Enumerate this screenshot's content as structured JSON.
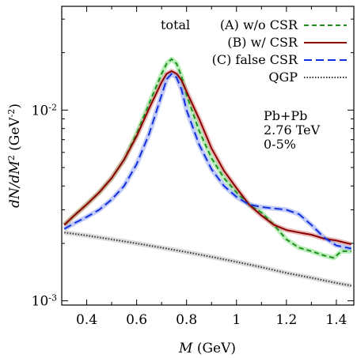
{
  "chart_data": {
    "type": "line",
    "xlabel_italic": "M",
    "xlabel_rest": "(GeV)",
    "ylabel_parts": [
      "dN/dM",
      "2",
      " (GeV",
      "-2",
      ")"
    ],
    "xlim": [
      0.3,
      1.47
    ],
    "ylim": [
      0.00095,
      0.035
    ],
    "yscale": "log",
    "grid": false,
    "legend_position": "top-right",
    "legend_group_label": "total",
    "x_ticks": [
      {
        "value": 0.4,
        "label": "0.4"
      },
      {
        "value": 0.6,
        "label": "0.6"
      },
      {
        "value": 0.8,
        "label": "0.8"
      },
      {
        "value": 1.0,
        "label": "1"
      },
      {
        "value": 1.2,
        "label": "1.2"
      },
      {
        "value": 1.4,
        "label": "1.4"
      }
    ],
    "y_major_ticks": [
      {
        "value": 0.001,
        "base": "10",
        "exp": "-3"
      },
      {
        "value": 0.01,
        "base": "10",
        "exp": "-2"
      }
    ],
    "y_minor_ticks": [
      0.002,
      0.003,
      0.004,
      0.005,
      0.006,
      0.007,
      0.008,
      0.009,
      0.02,
      0.03
    ],
    "annotation": [
      "Pb+Pb",
      "2.76 TeV",
      "0-5%"
    ],
    "series": [
      {
        "name": "(A)  w/o CSR",
        "color": "#1f8f1f",
        "band_color": "#7fe07f",
        "dash": "6,4",
        "x": [
          0.31,
          0.35,
          0.4,
          0.45,
          0.5,
          0.55,
          0.6,
          0.65,
          0.7,
          0.72,
          0.74,
          0.76,
          0.78,
          0.8,
          0.85,
          0.9,
          0.95,
          1.0,
          1.05,
          1.1,
          1.15,
          1.2,
          1.25,
          1.3,
          1.35,
          1.39,
          1.42,
          1.46
        ],
        "y": [
          0.0025,
          0.0028,
          0.0032,
          0.0037,
          0.0044,
          0.0055,
          0.0075,
          0.0108,
          0.0155,
          0.0175,
          0.0185,
          0.0175,
          0.015,
          0.012,
          0.0078,
          0.0056,
          0.0044,
          0.0037,
          0.0032,
          0.0029,
          0.0025,
          0.0021,
          0.0019,
          0.00182,
          0.00173,
          0.00168,
          0.00182,
          0.00182
        ]
      },
      {
        "name": "(B)  w/ CSR",
        "color": "#8b0000",
        "band_color": "#d98080",
        "dash": "",
        "x": [
          0.31,
          0.35,
          0.4,
          0.45,
          0.5,
          0.55,
          0.6,
          0.65,
          0.7,
          0.72,
          0.74,
          0.76,
          0.78,
          0.8,
          0.85,
          0.9,
          0.95,
          1.0,
          1.05,
          1.1,
          1.15,
          1.2,
          1.25,
          1.3,
          1.35,
          1.4,
          1.46
        ],
        "y": [
          0.0025,
          0.0028,
          0.0032,
          0.0037,
          0.0044,
          0.0055,
          0.0073,
          0.0102,
          0.014,
          0.0155,
          0.016,
          0.0155,
          0.0143,
          0.0125,
          0.009,
          0.0063,
          0.0048,
          0.0039,
          0.0032,
          0.0028,
          0.0025,
          0.00235,
          0.00228,
          0.00222,
          0.00212,
          0.00207,
          0.00198
        ]
      },
      {
        "name": "(C) false CSR",
        "color": "#1030e0",
        "band_color": "#8fa0f0",
        "dash": "10,5",
        "x": [
          0.31,
          0.35,
          0.4,
          0.45,
          0.5,
          0.55,
          0.6,
          0.65,
          0.7,
          0.72,
          0.74,
          0.76,
          0.78,
          0.8,
          0.85,
          0.9,
          0.95,
          1.0,
          1.05,
          1.1,
          1.15,
          1.2,
          1.25,
          1.3,
          1.35,
          1.4,
          1.46
        ],
        "y": [
          0.00238,
          0.00255,
          0.00275,
          0.003,
          0.0034,
          0.004,
          0.0052,
          0.0075,
          0.012,
          0.0145,
          0.0155,
          0.0148,
          0.0128,
          0.01,
          0.0066,
          0.0049,
          0.004,
          0.0035,
          0.0032,
          0.0031,
          0.00305,
          0.003,
          0.00285,
          0.0025,
          0.00215,
          0.00195,
          0.00188
        ]
      },
      {
        "name": "QGP",
        "color": "#333333",
        "band_color": "#bdbdbd",
        "dash": "1.5,2",
        "x": [
          0.31,
          0.4,
          0.5,
          0.6,
          0.7,
          0.8,
          0.9,
          1.0,
          1.1,
          1.2,
          1.3,
          1.4,
          1.46
        ],
        "y": [
          0.00228,
          0.0022,
          0.0021,
          0.002,
          0.0019,
          0.0018,
          0.0017,
          0.0016,
          0.0015,
          0.0014,
          0.00132,
          0.00124,
          0.0012
        ]
      }
    ]
  }
}
